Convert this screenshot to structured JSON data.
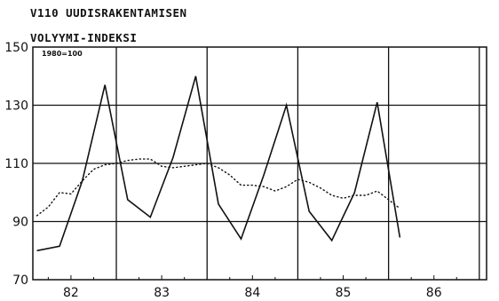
{
  "chart_data": {
    "type": "line",
    "title_lines": [
      "V110 UUDISRAKENTAMISEN",
      "VOLYYMI-INDEKSI"
    ],
    "note": "1980=100",
    "ylim": [
      70,
      150
    ],
    "yticks": [
      "150",
      "130",
      "110",
      "90",
      "70"
    ],
    "xlim": [
      81.58,
      86.58
    ],
    "xticks": [
      "82",
      "83",
      "84",
      "85",
      "86"
    ],
    "grid": true,
    "series": [
      {
        "style": "solid",
        "x": [
          81.625,
          81.875,
          82.125,
          82.375,
          82.625,
          82.875,
          83.125,
          83.375,
          83.625,
          83.875,
          84.125,
          84.375,
          84.625,
          84.875,
          85.125,
          85.375,
          85.625
        ],
        "values": [
          80,
          81.5,
          104,
          137,
          97.5,
          91.5,
          112,
          140,
          96,
          84,
          106,
          130,
          93.5,
          83.5,
          100,
          131,
          84.5
        ]
      },
      {
        "style": "dotted",
        "x": [
          81.625,
          81.75,
          81.875,
          82.0,
          82.125,
          82.25,
          82.375,
          82.5,
          82.625,
          82.75,
          82.875,
          83.0,
          83.125,
          83.25,
          83.375,
          83.5,
          83.625,
          83.75,
          83.875,
          84.0,
          84.125,
          84.25,
          84.375,
          84.5,
          84.625,
          84.75,
          84.875,
          85.0,
          85.125,
          85.25,
          85.375,
          85.5,
          85.625
        ],
        "values": [
          92,
          95,
          100,
          99.5,
          104,
          108,
          109.5,
          110,
          111,
          111.5,
          111.5,
          109,
          108.5,
          109,
          109.5,
          110,
          108.5,
          106,
          102.5,
          102.5,
          102,
          100.5,
          102,
          104.5,
          103.5,
          101.5,
          99,
          98,
          99,
          99,
          100.5,
          97.5,
          94.5
        ]
      }
    ]
  }
}
